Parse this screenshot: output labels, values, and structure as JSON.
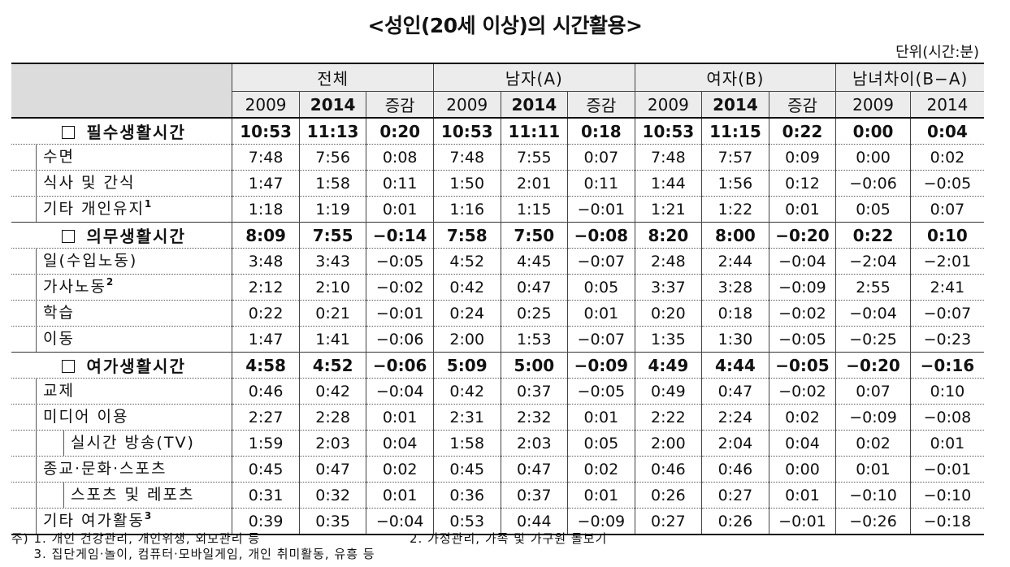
{
  "title": "<성인(20세 이상)의 시간활용>",
  "unit": "단위(시간:분)",
  "groups": [
    "전체",
    "남자(A)",
    "여자(B)",
    "남녀차이(B−A)"
  ],
  "years": [
    "2009",
    "2014",
    "증감",
    "2009",
    "2014",
    "증감",
    "2009",
    "2014",
    "증감",
    "2009",
    "2014"
  ],
  "rows": [
    {
      "label": "필수생활시간",
      "sup": "",
      "level": 0,
      "values": [
        "10:53",
        "11:13",
        "0:20",
        "10:53",
        "11:11",
        "0:18",
        "10:53",
        "11:15",
        "0:22",
        "0:00",
        "0:04"
      ]
    },
    {
      "label": "수면",
      "sup": "",
      "level": 1,
      "values": [
        "7:48",
        "7:56",
        "0:08",
        "7:48",
        "7:55",
        "0:07",
        "7:48",
        "7:57",
        "0:09",
        "0:00",
        "0:02"
      ]
    },
    {
      "label": "식사 및 간식",
      "sup": "",
      "level": 1,
      "values": [
        "1:47",
        "1:58",
        "0:11",
        "1:50",
        "2:01",
        "0:11",
        "1:44",
        "1:56",
        "0:12",
        "−0:06",
        "−0:05"
      ]
    },
    {
      "label": "기타 개인유지",
      "sup": "1",
      "level": 1,
      "values": [
        "1:18",
        "1:19",
        "0:01",
        "1:16",
        "1:15",
        "−0:01",
        "1:21",
        "1:22",
        "0:01",
        "0:05",
        "0:07"
      ]
    },
    {
      "label": "의무생활시간",
      "sup": "",
      "level": 0,
      "values": [
        "8:09",
        "7:55",
        "−0:14",
        "7:58",
        "7:50",
        "−0:08",
        "8:20",
        "8:00",
        "−0:20",
        "0:22",
        "0:10"
      ]
    },
    {
      "label": "일(수입노동)",
      "sup": "",
      "level": 1,
      "values": [
        "3:48",
        "3:43",
        "−0:05",
        "4:52",
        "4:45",
        "−0:07",
        "2:48",
        "2:44",
        "−0:04",
        "−2:04",
        "−2:01"
      ]
    },
    {
      "label": "가사노동",
      "sup": "2",
      "level": 1,
      "values": [
        "2:12",
        "2:10",
        "−0:02",
        "0:42",
        "0:47",
        "0:05",
        "3:37",
        "3:28",
        "−0:09",
        "2:55",
        "2:41"
      ]
    },
    {
      "label": "학습",
      "sup": "",
      "level": 1,
      "values": [
        "0:22",
        "0:21",
        "−0:01",
        "0:24",
        "0:25",
        "0:01",
        "0:20",
        "0:18",
        "−0:02",
        "−0:04",
        "−0:07"
      ]
    },
    {
      "label": "이동",
      "sup": "",
      "level": 1,
      "values": [
        "1:47",
        "1:41",
        "−0:06",
        "2:00",
        "1:53",
        "−0:07",
        "1:35",
        "1:30",
        "−0:05",
        "−0:25",
        "−0:23"
      ]
    },
    {
      "label": "여가생활시간",
      "sup": "",
      "level": 0,
      "values": [
        "4:58",
        "4:52",
        "−0:06",
        "5:09",
        "5:00",
        "−0:09",
        "4:49",
        "4:44",
        "−0:05",
        "−0:20",
        "−0:16"
      ]
    },
    {
      "label": "교제",
      "sup": "",
      "level": 1,
      "values": [
        "0:46",
        "0:42",
        "−0:04",
        "0:42",
        "0:37",
        "−0:05",
        "0:49",
        "0:47",
        "−0:02",
        "0:07",
        "0:10"
      ]
    },
    {
      "label": "미디어 이용",
      "sup": "",
      "level": 1,
      "values": [
        "2:27",
        "2:28",
        "0:01",
        "2:31",
        "2:32",
        "0:01",
        "2:22",
        "2:24",
        "0:02",
        "−0:09",
        "−0:08"
      ]
    },
    {
      "label": "실시간 방송(TV)",
      "sup": "",
      "level": 2,
      "values": [
        "1:59",
        "2:03",
        "0:04",
        "1:58",
        "2:03",
        "0:05",
        "2:00",
        "2:04",
        "0:04",
        "0:02",
        "0:01"
      ]
    },
    {
      "label": "종교·문화·스포츠",
      "sup": "",
      "level": 1,
      "values": [
        "0:45",
        "0:47",
        "0:02",
        "0:45",
        "0:47",
        "0:02",
        "0:46",
        "0:46",
        "0:00",
        "0:01",
        "−0:01"
      ]
    },
    {
      "label": "스포츠 및 레포츠",
      "sup": "",
      "level": 2,
      "values": [
        "0:31",
        "0:32",
        "0:01",
        "0:36",
        "0:37",
        "0:01",
        "0:26",
        "0:27",
        "0:01",
        "−0:10",
        "−0:10"
      ]
    },
    {
      "label": "기타 여가활동",
      "sup": "3",
      "level": 1,
      "values": [
        "0:39",
        "0:35",
        "−0:04",
        "0:53",
        "0:44",
        "−0:09",
        "0:27",
        "0:26",
        "−0:01",
        "−0:26",
        "−0:18"
      ]
    }
  ],
  "notes": {
    "prefix": "주)",
    "n1": "1. 개인 건강관리, 개인위생, 외모관리 등",
    "n2": "2. 가정관리, 가족 및 가구원 돌보기",
    "n3": "3. 집단게임·놀이, 컴퓨터·모바일게임, 개인 취미활동, 유흥 등"
  }
}
